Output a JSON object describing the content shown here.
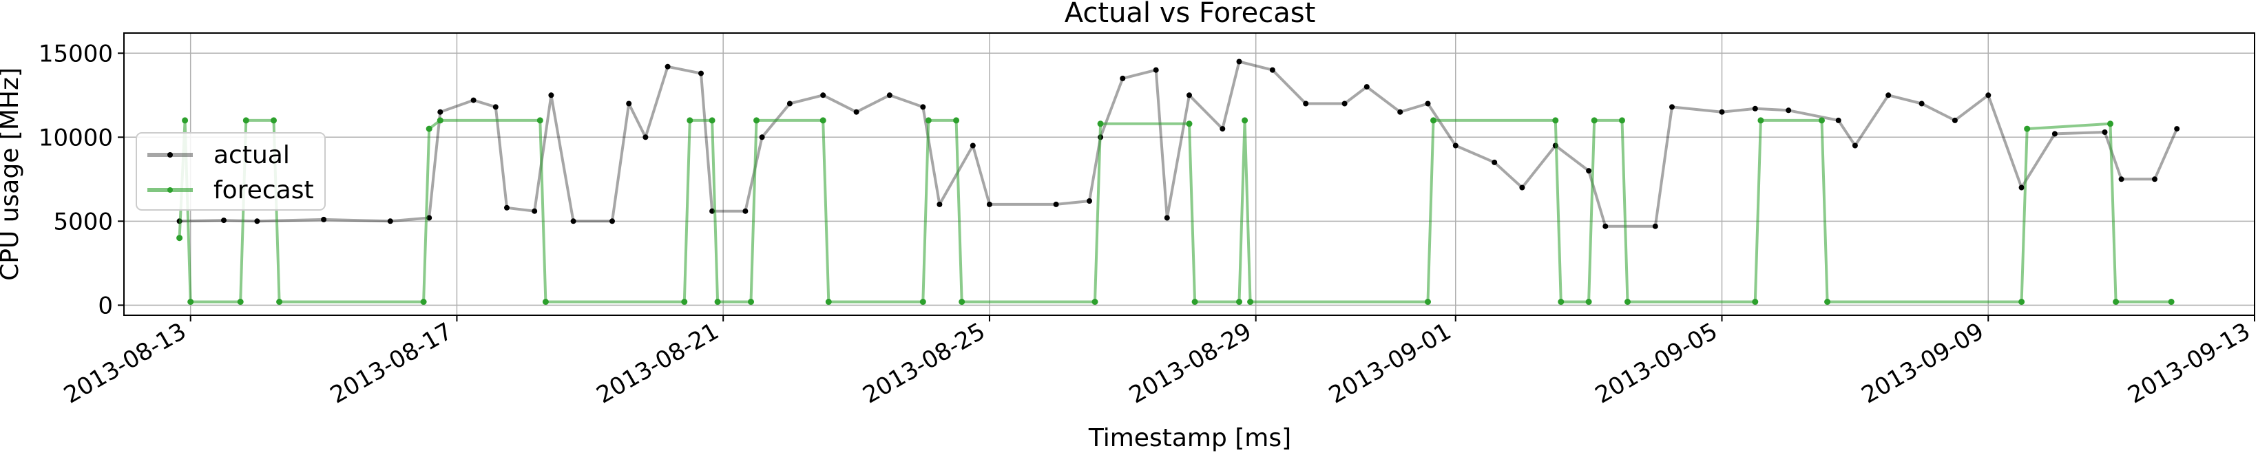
{
  "chart_data": {
    "type": "line",
    "title": "Actual vs Forecast",
    "xlabel": "Timestamp [ms]",
    "ylabel": "CPU usage [MHz]",
    "x_type": "date",
    "xlim": [
      "2013-08-12 00:00",
      "2013-09-13 00:00"
    ],
    "ylim": [
      -600,
      16200
    ],
    "x_ticks": [
      "2013-08-13",
      "2013-08-17",
      "2013-08-21",
      "2013-08-25",
      "2013-08-29",
      "2013-09-01",
      "2013-09-05",
      "2013-09-09",
      "2013-09-13"
    ],
    "y_ticks": [
      0,
      5000,
      10000,
      15000
    ],
    "y_tick_labels": [
      "0",
      "5000",
      "10000",
      "15000"
    ],
    "grid": true,
    "legend_position": "center-left",
    "series": [
      {
        "name": "actual",
        "color": "#000000",
        "points": [
          [
            "2013-08-12 20:00",
            5000
          ],
          [
            "2013-08-13 12:00",
            5050
          ],
          [
            "2013-08-14 00:00",
            5000
          ],
          [
            "2013-08-15 00:00",
            5100
          ],
          [
            "2013-08-16 00:00",
            5000
          ],
          [
            "2013-08-16 14:00",
            5200
          ],
          [
            "2013-08-16 18:00",
            11500
          ],
          [
            "2013-08-17 06:00",
            12200
          ],
          [
            "2013-08-17 14:00",
            11800
          ],
          [
            "2013-08-17 18:00",
            5800
          ],
          [
            "2013-08-18 04:00",
            5600
          ],
          [
            "2013-08-18 10:00",
            12500
          ],
          [
            "2013-08-18 18:00",
            5000
          ],
          [
            "2013-08-19 08:00",
            5000
          ],
          [
            "2013-08-19 14:00",
            12000
          ],
          [
            "2013-08-19 20:00",
            10000
          ],
          [
            "2013-08-20 04:00",
            14200
          ],
          [
            "2013-08-20 16:00",
            13800
          ],
          [
            "2013-08-20 20:00",
            5600
          ],
          [
            "2013-08-21 08:00",
            5600
          ],
          [
            "2013-08-21 14:00",
            10000
          ],
          [
            "2013-08-22 00:00",
            12000
          ],
          [
            "2013-08-22 12:00",
            12500
          ],
          [
            "2013-08-23 00:00",
            11500
          ],
          [
            "2013-08-23 12:00",
            12500
          ],
          [
            "2013-08-24 00:00",
            11800
          ],
          [
            "2013-08-24 06:00",
            6000
          ],
          [
            "2013-08-24 18:00",
            9500
          ],
          [
            "2013-08-25 00:00",
            6000
          ],
          [
            "2013-08-26 00:00",
            6000
          ],
          [
            "2013-08-26 12:00",
            6200
          ],
          [
            "2013-08-26 16:00",
            10000
          ],
          [
            "2013-08-27 00:00",
            13500
          ],
          [
            "2013-08-27 12:00",
            14000
          ],
          [
            "2013-08-27 16:00",
            5200
          ],
          [
            "2013-08-28 00:00",
            12500
          ],
          [
            "2013-08-28 12:00",
            10500
          ],
          [
            "2013-08-28 18:00",
            14500
          ],
          [
            "2013-08-29 06:00",
            14000
          ],
          [
            "2013-08-29 18:00",
            12000
          ],
          [
            "2013-08-30 08:00",
            12000
          ],
          [
            "2013-08-30 16:00",
            13000
          ],
          [
            "2013-08-31 04:00",
            11500
          ],
          [
            "2013-08-31 14:00",
            12000
          ],
          [
            "2013-09-01 00:00",
            9500
          ],
          [
            "2013-09-01 14:00",
            8500
          ],
          [
            "2013-09-02 00:00",
            7000
          ],
          [
            "2013-09-02 12:00",
            9500
          ],
          [
            "2013-09-03 00:00",
            8000
          ],
          [
            "2013-09-03 06:00",
            4700
          ],
          [
            "2013-09-04 00:00",
            4700
          ],
          [
            "2013-09-04 06:00",
            11800
          ],
          [
            "2013-09-05 00:00",
            11500
          ],
          [
            "2013-09-05 12:00",
            11700
          ],
          [
            "2013-09-06 00:00",
            11600
          ],
          [
            "2013-09-06 18:00",
            11000
          ],
          [
            "2013-09-07 00:00",
            9500
          ],
          [
            "2013-09-07 12:00",
            12500
          ],
          [
            "2013-09-08 00:00",
            12000
          ],
          [
            "2013-09-08 12:00",
            11000
          ],
          [
            "2013-09-09 00:00",
            12500
          ],
          [
            "2013-09-09 12:00",
            7000
          ],
          [
            "2013-09-10 00:00",
            10200
          ],
          [
            "2013-09-10 18:00",
            10300
          ],
          [
            "2013-09-11 00:00",
            7500
          ],
          [
            "2013-09-11 12:00",
            7500
          ],
          [
            "2013-09-11 20:00",
            10500
          ]
        ]
      },
      {
        "name": "forecast",
        "color": "#2ca02c",
        "points": [
          [
            "2013-08-12 20:00",
            4000
          ],
          [
            "2013-08-12 22:00",
            11000
          ],
          [
            "2013-08-13 00:00",
            200
          ],
          [
            "2013-08-13 18:00",
            200
          ],
          [
            "2013-08-13 20:00",
            11000
          ],
          [
            "2013-08-14 06:00",
            11000
          ],
          [
            "2013-08-14 08:00",
            200
          ],
          [
            "2013-08-16 12:00",
            200
          ],
          [
            "2013-08-16 14:00",
            10500
          ],
          [
            "2013-08-16 18:00",
            11000
          ],
          [
            "2013-08-18 06:00",
            11000
          ],
          [
            "2013-08-18 08:00",
            200
          ],
          [
            "2013-08-20 10:00",
            200
          ],
          [
            "2013-08-20 12:00",
            11000
          ],
          [
            "2013-08-20 20:00",
            11000
          ],
          [
            "2013-08-20 22:00",
            200
          ],
          [
            "2013-08-21 10:00",
            200
          ],
          [
            "2013-08-21 12:00",
            11000
          ],
          [
            "2013-08-22 12:00",
            11000
          ],
          [
            "2013-08-22 14:00",
            200
          ],
          [
            "2013-08-24 00:00",
            200
          ],
          [
            "2013-08-24 02:00",
            11000
          ],
          [
            "2013-08-24 12:00",
            11000
          ],
          [
            "2013-08-24 14:00",
            200
          ],
          [
            "2013-08-26 14:00",
            200
          ],
          [
            "2013-08-26 16:00",
            10800
          ],
          [
            "2013-08-28 00:00",
            10800
          ],
          [
            "2013-08-28 02:00",
            200
          ],
          [
            "2013-08-28 18:00",
            200
          ],
          [
            "2013-08-28 20:00",
            11000
          ],
          [
            "2013-08-28 22:00",
            200
          ],
          [
            "2013-08-31 14:00",
            200
          ],
          [
            "2013-08-31 16:00",
            11000
          ],
          [
            "2013-09-02 12:00",
            11000
          ],
          [
            "2013-09-02 14:00",
            200
          ],
          [
            "2013-09-03 00:00",
            200
          ],
          [
            "2013-09-03 02:00",
            11000
          ],
          [
            "2013-09-03 12:00",
            11000
          ],
          [
            "2013-09-03 14:00",
            200
          ],
          [
            "2013-09-05 12:00",
            200
          ],
          [
            "2013-09-05 14:00",
            11000
          ],
          [
            "2013-09-06 12:00",
            11000
          ],
          [
            "2013-09-06 14:00",
            200
          ],
          [
            "2013-09-09 12:00",
            200
          ],
          [
            "2013-09-09 14:00",
            10500
          ],
          [
            "2013-09-10 20:00",
            10800
          ],
          [
            "2013-09-10 22:00",
            200
          ],
          [
            "2013-09-11 18:00",
            200
          ]
        ]
      }
    ]
  }
}
